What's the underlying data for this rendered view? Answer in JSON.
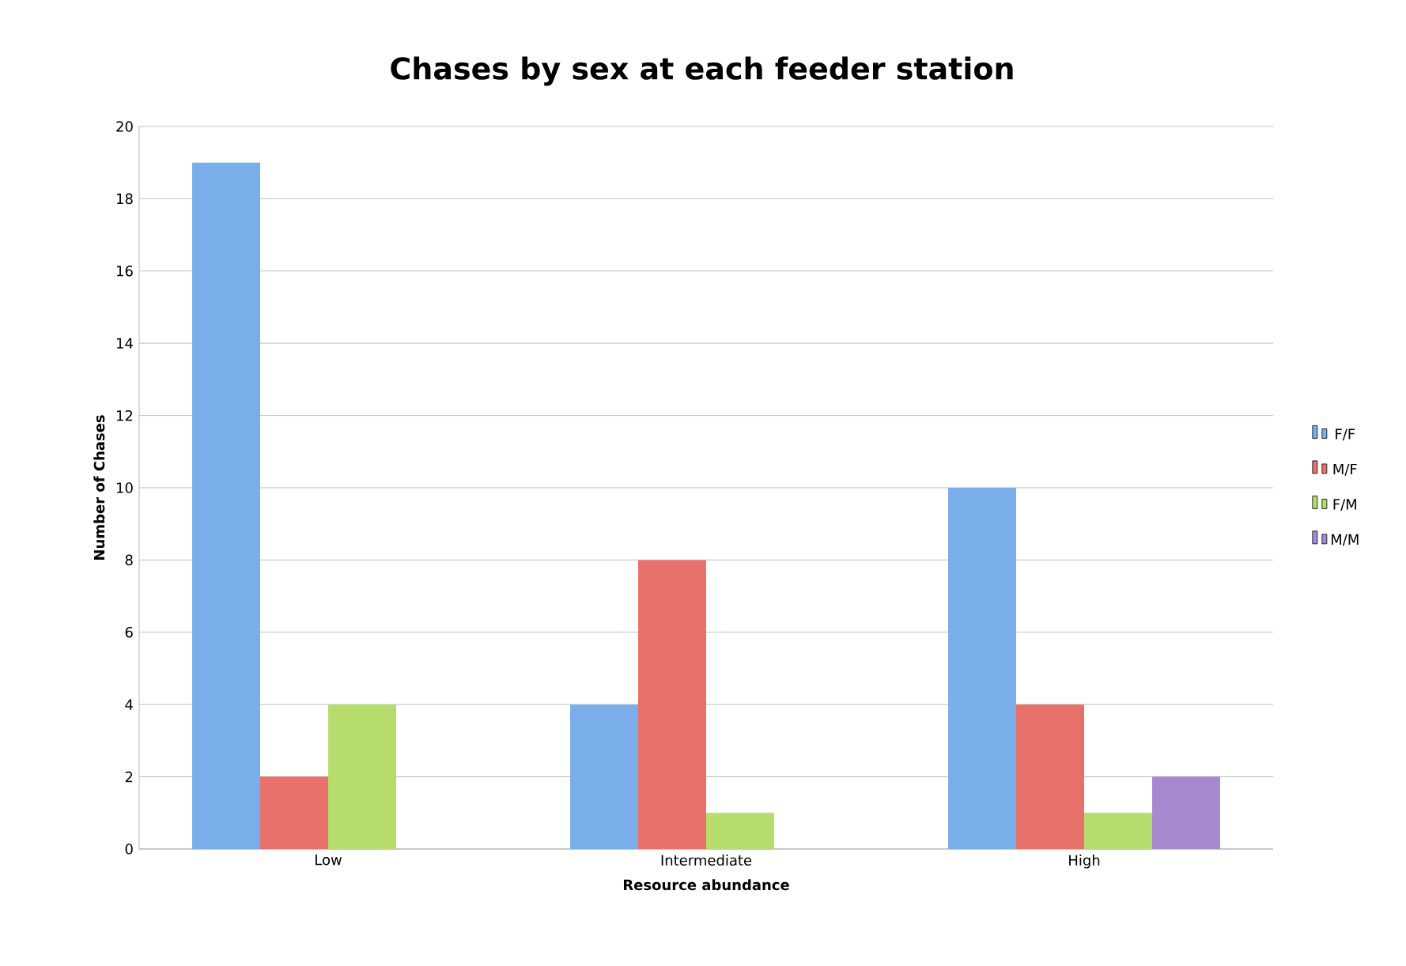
{
  "chart_data": {
    "type": "bar",
    "title": "Chases by sex at each feeder station",
    "xlabel": "Resource abundance",
    "ylabel": "Number of Chases",
    "categories": [
      "Low",
      "Intermediate",
      "High"
    ],
    "series": [
      {
        "name": "F/F",
        "color": "#7aaeea",
        "values": [
          19,
          4,
          10
        ]
      },
      {
        "name": "M/F",
        "color": "#e8726b",
        "values": [
          2,
          8,
          4
        ]
      },
      {
        "name": "F/M",
        "color": "#b5dc6c",
        "values": [
          4,
          1,
          1
        ]
      },
      {
        "name": "M/M",
        "color": "#a68ad0",
        "values": [
          0,
          0,
          2
        ]
      }
    ],
    "ylim": [
      0,
      20
    ],
    "yticks": [
      0,
      2,
      4,
      6,
      8,
      10,
      12,
      14,
      16,
      18,
      20
    ],
    "grid": "y",
    "legend": "right"
  }
}
